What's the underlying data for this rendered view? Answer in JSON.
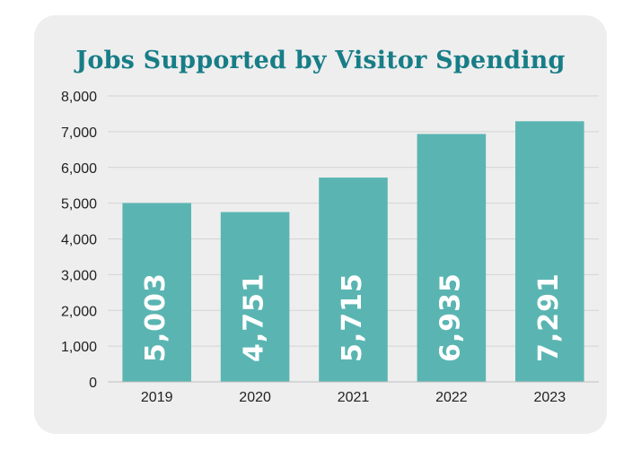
{
  "chart_data": {
    "type": "bar",
    "title": "Jobs Supported by Visitor Spending",
    "categories": [
      "2019",
      "2020",
      "2021",
      "2022",
      "2023"
    ],
    "values": [
      5003,
      4751,
      5715,
      6935,
      7291
    ],
    "data_labels": [
      "5,003",
      "4,751",
      "5,715",
      "6,935",
      "7,291"
    ],
    "y_ticks": [
      "0",
      "1,000",
      "2,000",
      "3,000",
      "4,000",
      "5,000",
      "6,000",
      "7,000",
      "8,000"
    ],
    "ylim": [
      0,
      8000
    ],
    "xlabel": "",
    "ylabel": "",
    "grid": true,
    "legend": "none",
    "colors": {
      "bar": "#5ab5b2",
      "title": "#177d87",
      "card_background": "#eeeeee",
      "grid": "#d4d4d4"
    }
  }
}
